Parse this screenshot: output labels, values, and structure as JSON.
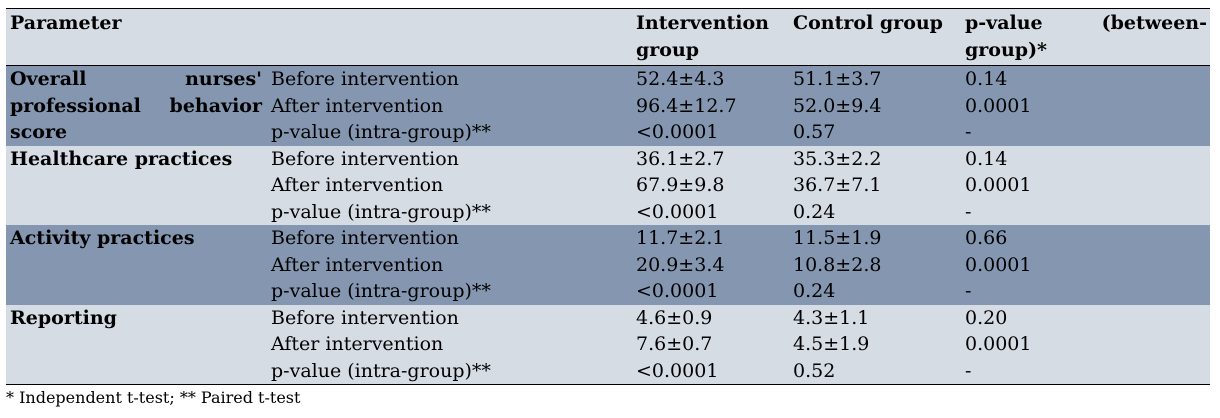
{
  "header": {
    "parameter": "Parameter",
    "intervention_line1": "Intervention",
    "intervention_line2": "group",
    "control": "Control group",
    "pvalue_word1": "p-value",
    "pvalue_word2": "(between-",
    "pvalue_line2": "group)*"
  },
  "groups": [
    {
      "name_words": [
        "Overall",
        "nurses'",
        "professional",
        "behavior",
        "score"
      ],
      "rows": [
        {
          "label": "Before intervention",
          "intervention": "52.4±4.3",
          "control": "51.1±3.7",
          "pvalue": "0.14"
        },
        {
          "label": "After intervention",
          "intervention": "96.4±12.7",
          "control": "52.0±9.4",
          "pvalue": "0.0001"
        },
        {
          "label": "p-value (intra-group)**",
          "intervention": "<0.0001",
          "control": "0.57",
          "pvalue": "-"
        }
      ]
    },
    {
      "name": "Healthcare practices",
      "rows": [
        {
          "label": "Before intervention",
          "intervention": "36.1±2.7",
          "control": "35.3±2.2",
          "pvalue": "0.14"
        },
        {
          "label": "After intervention",
          "intervention": "67.9±9.8",
          "control": "36.7±7.1",
          "pvalue": "0.0001"
        },
        {
          "label": "p-value (intra-group)**",
          "intervention": "<0.0001",
          "control": "0.24",
          "pvalue": "-"
        }
      ]
    },
    {
      "name": "Activity practices",
      "rows": [
        {
          "label": "Before intervention",
          "intervention": "11.7±2.1",
          "control": "11.5±1.9",
          "pvalue": "0.66"
        },
        {
          "label": "After intervention",
          "intervention": "20.9±3.4",
          "control": "10.8±2.8",
          "pvalue": "0.0001"
        },
        {
          "label": "p-value (intra-group)**",
          "intervention": "<0.0001",
          "control": "0.24",
          "pvalue": "-"
        }
      ]
    },
    {
      "name": "Reporting",
      "rows": [
        {
          "label": "Before intervention",
          "intervention": "4.6±0.9",
          "control": "4.3±1.1",
          "pvalue": "0.20"
        },
        {
          "label": "After intervention",
          "intervention": "7.6±0.7",
          "control": "4.5±1.9",
          "pvalue": "0.0001"
        },
        {
          "label": "p-value (intra-group)**",
          "intervention": "<0.0001",
          "control": "0.52",
          "pvalue": "-"
        }
      ]
    }
  ],
  "footnote": "* Independent t-test; ** Paired t-test"
}
